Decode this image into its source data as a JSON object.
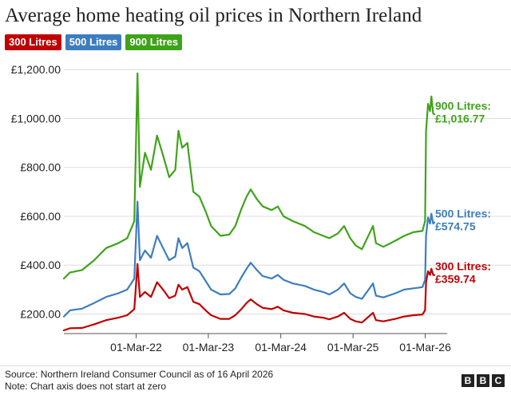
{
  "chart_data": {
    "type": "line",
    "title": "Average home heating oil prices in Northern Ireland",
    "xlabel": "",
    "ylabel": "",
    "ylim": [
      120,
      1230
    ],
    "y_ticks": [
      "£1,200.00",
      "£1,000.00",
      "£800.00",
      "£600.00",
      "£400.00",
      "£200.00"
    ],
    "y_tick_values": [
      1200,
      1000,
      800,
      600,
      400,
      200
    ],
    "x_ticks": [
      "01-Mar-22",
      "01-Mar-23",
      "01-Mar-24",
      "01-Mar-25",
      "01-Mar-26"
    ],
    "x_tick_dates": [
      "2022-03-01",
      "2023-03-01",
      "2024-03-01",
      "2025-03-01",
      "2026-03-01"
    ],
    "grid": true,
    "legend_position": "top-left",
    "series": [
      {
        "name": "300 Litres",
        "color": "#c00000",
        "end_label": "300 Litres:",
        "end_value": "£359.74",
        "points": [
          [
            "2021-03-01",
            133
          ],
          [
            "2021-04-01",
            142
          ],
          [
            "2021-06-01",
            143
          ],
          [
            "2021-08-01",
            158
          ],
          [
            "2021-10-01",
            175
          ],
          [
            "2021-12-01",
            185
          ],
          [
            "2022-01-15",
            195
          ],
          [
            "2022-02-20",
            220
          ],
          [
            "2022-03-08",
            405
          ],
          [
            "2022-03-20",
            270
          ],
          [
            "2022-04-15",
            290
          ],
          [
            "2022-05-15",
            270
          ],
          [
            "2022-06-15",
            330
          ],
          [
            "2022-07-15",
            300
          ],
          [
            "2022-08-15",
            265
          ],
          [
            "2022-09-15",
            275
          ],
          [
            "2022-10-01",
            320
          ],
          [
            "2022-10-20",
            300
          ],
          [
            "2022-11-15",
            310
          ],
          [
            "2022-12-15",
            250
          ],
          [
            "2023-01-15",
            240
          ],
          [
            "2023-02-15",
            215
          ],
          [
            "2023-03-15",
            195
          ],
          [
            "2023-05-01",
            180
          ],
          [
            "2023-06-15",
            180
          ],
          [
            "2023-07-15",
            195
          ],
          [
            "2023-08-15",
            220
          ],
          [
            "2023-09-10",
            245
          ],
          [
            "2023-10-01",
            260
          ],
          [
            "2023-11-01",
            240
          ],
          [
            "2023-12-01",
            225
          ],
          [
            "2024-01-15",
            220
          ],
          [
            "2024-02-15",
            230
          ],
          [
            "2024-03-15",
            215
          ],
          [
            "2024-05-01",
            205
          ],
          [
            "2024-07-01",
            200
          ],
          [
            "2024-08-15",
            190
          ],
          [
            "2024-10-01",
            185
          ],
          [
            "2024-11-01",
            178
          ],
          [
            "2024-12-15",
            190
          ],
          [
            "2025-01-15",
            205
          ],
          [
            "2025-02-15",
            180
          ],
          [
            "2025-03-15",
            170
          ],
          [
            "2025-04-15",
            165
          ],
          [
            "2025-06-10",
            205
          ],
          [
            "2025-06-25",
            175
          ],
          [
            "2025-08-01",
            170
          ],
          [
            "2025-10-01",
            180
          ],
          [
            "2025-11-15",
            190
          ],
          [
            "2026-01-01",
            195
          ],
          [
            "2026-02-15",
            198
          ],
          [
            "2026-02-28",
            215
          ],
          [
            "2026-03-05",
            330
          ],
          [
            "2026-03-15",
            375
          ],
          [
            "2026-03-25",
            360
          ],
          [
            "2026-04-01",
            385
          ],
          [
            "2026-04-10",
            360
          ],
          [
            "2026-04-16",
            359.74
          ]
        ]
      },
      {
        "name": "500 Litres",
        "color": "#3d7dbf",
        "end_label": "500 Litres:",
        "end_value": "£574.75",
        "points": [
          [
            "2021-03-01",
            190
          ],
          [
            "2021-04-01",
            215
          ],
          [
            "2021-06-01",
            222
          ],
          [
            "2021-08-01",
            245
          ],
          [
            "2021-10-01",
            270
          ],
          [
            "2021-12-01",
            285
          ],
          [
            "2022-01-15",
            300
          ],
          [
            "2022-02-20",
            345
          ],
          [
            "2022-03-08",
            660
          ],
          [
            "2022-03-20",
            420
          ],
          [
            "2022-04-15",
            460
          ],
          [
            "2022-05-15",
            430
          ],
          [
            "2022-06-15",
            520
          ],
          [
            "2022-07-15",
            470
          ],
          [
            "2022-08-15",
            420
          ],
          [
            "2022-09-15",
            435
          ],
          [
            "2022-10-01",
            510
          ],
          [
            "2022-10-20",
            470
          ],
          [
            "2022-11-15",
            490
          ],
          [
            "2022-12-15",
            390
          ],
          [
            "2023-01-15",
            375
          ],
          [
            "2023-02-15",
            335
          ],
          [
            "2023-03-15",
            300
          ],
          [
            "2023-05-01",
            280
          ],
          [
            "2023-06-15",
            282
          ],
          [
            "2023-07-15",
            305
          ],
          [
            "2023-08-15",
            350
          ],
          [
            "2023-09-10",
            385
          ],
          [
            "2023-10-01",
            410
          ],
          [
            "2023-11-01",
            380
          ],
          [
            "2023-12-01",
            355
          ],
          [
            "2024-01-15",
            345
          ],
          [
            "2024-02-15",
            360
          ],
          [
            "2024-03-15",
            340
          ],
          [
            "2024-05-01",
            325
          ],
          [
            "2024-07-01",
            315
          ],
          [
            "2024-08-15",
            300
          ],
          [
            "2024-10-01",
            290
          ],
          [
            "2024-11-01",
            280
          ],
          [
            "2024-12-15",
            300
          ],
          [
            "2025-01-15",
            325
          ],
          [
            "2025-02-15",
            285
          ],
          [
            "2025-03-15",
            270
          ],
          [
            "2025-04-15",
            262
          ],
          [
            "2025-06-10",
            325
          ],
          [
            "2025-06-25",
            275
          ],
          [
            "2025-08-01",
            268
          ],
          [
            "2025-10-01",
            285
          ],
          [
            "2025-11-15",
            300
          ],
          [
            "2026-01-01",
            305
          ],
          [
            "2026-02-15",
            310
          ],
          [
            "2026-02-28",
            340
          ],
          [
            "2026-03-05",
            520
          ],
          [
            "2026-03-15",
            595
          ],
          [
            "2026-03-25",
            570
          ],
          [
            "2026-04-01",
            610
          ],
          [
            "2026-04-10",
            570
          ],
          [
            "2026-04-16",
            574.75
          ]
        ]
      },
      {
        "name": "900 Litres",
        "color": "#3fa31a",
        "end_label": "900 Litres:",
        "end_value": "£1,016.77",
        "points": [
          [
            "2021-03-01",
            345
          ],
          [
            "2021-04-01",
            370
          ],
          [
            "2021-06-01",
            380
          ],
          [
            "2021-08-01",
            420
          ],
          [
            "2021-10-01",
            470
          ],
          [
            "2021-12-01",
            490
          ],
          [
            "2022-01-15",
            510
          ],
          [
            "2022-02-20",
            580
          ],
          [
            "2022-03-08",
            1185
          ],
          [
            "2022-03-20",
            720
          ],
          [
            "2022-04-15",
            860
          ],
          [
            "2022-05-15",
            790
          ],
          [
            "2022-06-15",
            930
          ],
          [
            "2022-07-15",
            850
          ],
          [
            "2022-08-15",
            760
          ],
          [
            "2022-09-15",
            790
          ],
          [
            "2022-10-01",
            950
          ],
          [
            "2022-10-20",
            880
          ],
          [
            "2022-11-15",
            900
          ],
          [
            "2022-12-15",
            700
          ],
          [
            "2023-01-15",
            680
          ],
          [
            "2023-02-15",
            620
          ],
          [
            "2023-03-15",
            560
          ],
          [
            "2023-05-01",
            520
          ],
          [
            "2023-06-15",
            525
          ],
          [
            "2023-07-15",
            560
          ],
          [
            "2023-08-15",
            630
          ],
          [
            "2023-09-10",
            680
          ],
          [
            "2023-10-01",
            710
          ],
          [
            "2023-11-01",
            670
          ],
          [
            "2023-12-01",
            640
          ],
          [
            "2024-01-15",
            625
          ],
          [
            "2024-02-15",
            640
          ],
          [
            "2024-03-15",
            600
          ],
          [
            "2024-05-01",
            580
          ],
          [
            "2024-07-01",
            560
          ],
          [
            "2024-08-15",
            535
          ],
          [
            "2024-10-01",
            520
          ],
          [
            "2024-11-01",
            510
          ],
          [
            "2024-12-15",
            530
          ],
          [
            "2025-01-15",
            560
          ],
          [
            "2025-02-15",
            510
          ],
          [
            "2025-03-15",
            480
          ],
          [
            "2025-04-15",
            465
          ],
          [
            "2025-06-10",
            560
          ],
          [
            "2025-06-25",
            490
          ],
          [
            "2025-08-01",
            475
          ],
          [
            "2025-10-01",
            500
          ],
          [
            "2025-11-15",
            520
          ],
          [
            "2026-01-01",
            535
          ],
          [
            "2026-02-15",
            540
          ],
          [
            "2026-02-28",
            580
          ],
          [
            "2026-03-05",
            950
          ],
          [
            "2026-03-15",
            1060
          ],
          [
            "2026-03-25",
            1030
          ],
          [
            "2026-04-01",
            1090
          ],
          [
            "2026-04-10",
            1020
          ],
          [
            "2026-04-16",
            1016.77
          ]
        ]
      }
    ]
  },
  "footer": {
    "source": "Source: Northern Ireland Consumer Council as of 16 April 2026",
    "note": "Note: Chart axis does not start at zero"
  },
  "logo": {
    "letters": [
      "B",
      "B",
      "C"
    ]
  }
}
